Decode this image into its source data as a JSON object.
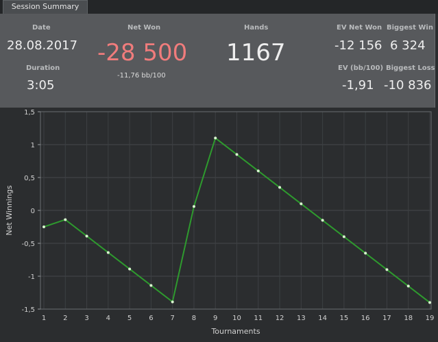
{
  "tab": {
    "label": "Session Summary"
  },
  "summary": {
    "date_label": "Date",
    "date_value": "28.08.2017",
    "duration_label": "Duration",
    "duration_value": "3:05",
    "net_won_label": "Net Won",
    "net_won_value": "-28 500",
    "net_won_sub": "-11,76 bb/100",
    "hands_label": "Hands",
    "hands_value": "1167",
    "ev_net_won_label": "EV Net Won",
    "ev_net_won_value": "-12 156",
    "biggest_win_label": "Biggest Win",
    "biggest_win_value": "6 324",
    "ev_bb_label": "EV (bb/100)",
    "ev_bb_value": "-1,91",
    "biggest_loss_label": "Biggest Loss",
    "biggest_loss_value": "-10 836"
  },
  "colors": {
    "negative": "#f07c7c",
    "line": "#2e9a2e",
    "point": "#d9f5d0",
    "panel": "#57595c",
    "chart_bg": "#2b2d2f"
  },
  "chart_data": {
    "type": "line",
    "xlabel": "Tournaments",
    "ylabel": "Net Winnings",
    "x": [
      1,
      2,
      3,
      4,
      5,
      6,
      7,
      8,
      9,
      10,
      11,
      12,
      13,
      14,
      15,
      16,
      17,
      18,
      19
    ],
    "series": [
      {
        "values": [
          -0.25,
          -0.14,
          -0.39,
          -0.64,
          -0.89,
          -1.14,
          -1.39,
          0.06,
          1.1,
          0.85,
          0.6,
          0.35,
          0.1,
          -0.15,
          -0.4,
          -0.65,
          -0.9,
          -1.15,
          -1.4
        ]
      }
    ],
    "yticks": [
      1.5,
      1,
      0.5,
      0,
      -0.5,
      -1,
      -1.5
    ],
    "ytick_labels": [
      "1,5",
      "1",
      "0,5",
      "0",
      "-0,5",
      "-1",
      "-1,5"
    ],
    "ylim": [
      -1.5,
      1.5
    ],
    "xlim": [
      1,
      19
    ],
    "grid": true
  }
}
